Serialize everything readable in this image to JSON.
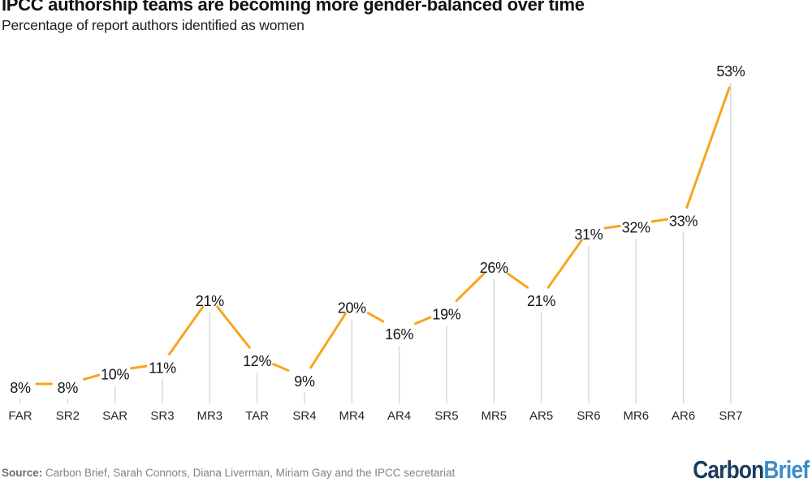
{
  "header": {
    "title": "IPCC authorship teams are becoming more gender-balanced over time",
    "subtitle": "Percentage of report authors identified as women"
  },
  "chart_data": {
    "type": "line",
    "title": "IPCC authorship teams are becoming more gender-balanced over time",
    "subtitle": "Percentage of report authors identified as women",
    "categories": [
      "FAR",
      "SR2",
      "SAR",
      "SR3",
      "MR3",
      "TAR",
      "SR4",
      "MR4",
      "AR4",
      "SR5",
      "MR5",
      "AR5",
      "SR6",
      "MR6",
      "AR6",
      "SR7"
    ],
    "values": [
      8,
      8,
      10,
      11,
      21,
      12,
      9,
      20,
      16,
      19,
      26,
      21,
      31,
      32,
      33,
      53
    ],
    "point_labels": [
      "8%",
      "8%",
      "10%",
      "11%",
      "21%",
      "12%",
      "9%",
      "20%",
      "16%",
      "19%",
      "26%",
      "21%",
      "31%",
      "32%",
      "33%",
      "53%"
    ],
    "unit": "%",
    "xlabel": "",
    "ylabel": "Percentage of report authors identified as women",
    "y_axis_visible": false,
    "grid": false,
    "legend": "none",
    "colors": {
      "line": "#F8A51B",
      "stem": "#D8D8D8",
      "point_label": "#141414",
      "axis_label": "#262626"
    }
  },
  "footer": {
    "source_label": "Source:",
    "source_text": " Carbon Brief, Sarah Connors, Diana Liverman, Miriam Gay and the IPCC secretariat",
    "logo": {
      "part1": "Carbon",
      "part2": "Brief",
      "color1": "#1B3D5F",
      "color2": "#3B8DC8"
    }
  }
}
